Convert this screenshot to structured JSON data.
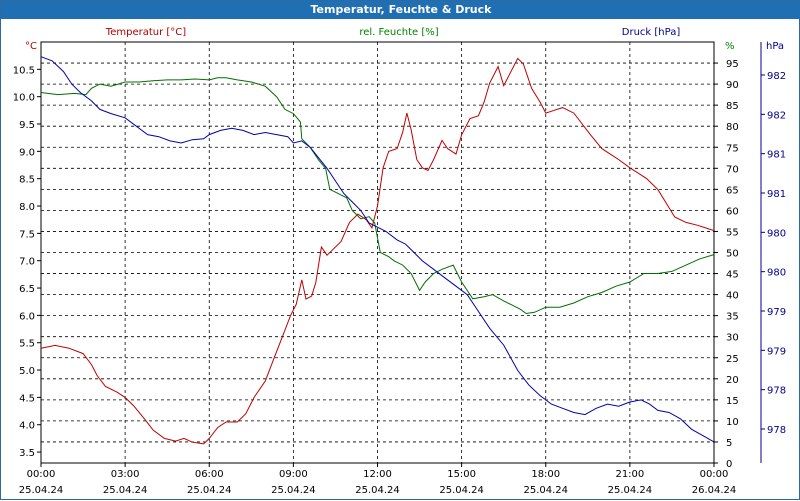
{
  "window": {
    "title": "Temperatur, Feuchte & Druck"
  },
  "chart_data": {
    "type": "line",
    "title": "Temperatur, Feuchte & Druck",
    "x_ticks": [
      {
        "time": "00:00",
        "date": "25.04.24"
      },
      {
        "time": "03:00",
        "date": "25.04.24"
      },
      {
        "time": "06:00",
        "date": "25.04.24"
      },
      {
        "time": "09:00",
        "date": "25.04.24"
      },
      {
        "time": "12:00",
        "date": "25.04.24"
      },
      {
        "time": "15:00",
        "date": "25.04.24"
      },
      {
        "time": "18:00",
        "date": "25.04.24"
      },
      {
        "time": "21:00",
        "date": "25.04.24"
      },
      {
        "time": "00:00",
        "date": "26.04.24"
      }
    ],
    "x_range_hours": [
      0,
      24
    ],
    "grid": true,
    "axes": {
      "temperature": {
        "label": "Temperatur [°C]",
        "unit": "°C",
        "color": "#b00000",
        "range": [
          3.3,
          11.0
        ],
        "ticks": [
          "3.5",
          "4.0",
          "4.5",
          "5.0",
          "5.5",
          "6.0",
          "6.5",
          "7.0",
          "7.5",
          "8.0",
          "8.5",
          "9.0",
          "9.5",
          "10.0",
          "10.5"
        ]
      },
      "humidity": {
        "label": "rel. Feuchte [%]",
        "unit": "%",
        "color": "#008000",
        "range": [
          0,
          100
        ],
        "ticks": [
          "0",
          "5",
          "10",
          "15",
          "20",
          "25",
          "30",
          "35",
          "40",
          "45",
          "50",
          "55",
          "60",
          "65",
          "70",
          "75",
          "80",
          "85",
          "90",
          "95"
        ]
      },
      "pressure": {
        "label": "Druck [hPa]",
        "unit": "hPa",
        "color": "#000090",
        "tick_labels": [
          "982",
          "982",
          "981",
          "981",
          "980",
          "980",
          "979",
          "979",
          "978",
          "978"
        ]
      }
    },
    "series": [
      {
        "name": "Temperatur [°C]",
        "color": "#c00000",
        "points": [
          [
            0.0,
            5.4
          ],
          [
            0.5,
            5.45
          ],
          [
            1.0,
            5.4
          ],
          [
            1.5,
            5.3
          ],
          [
            1.8,
            5.1
          ],
          [
            2.0,
            4.9
          ],
          [
            2.3,
            4.7
          ],
          [
            2.7,
            4.6
          ],
          [
            3.0,
            4.5
          ],
          [
            3.3,
            4.35
          ],
          [
            3.7,
            4.1
          ],
          [
            4.0,
            3.9
          ],
          [
            4.4,
            3.75
          ],
          [
            4.8,
            3.7
          ],
          [
            5.1,
            3.75
          ],
          [
            5.4,
            3.68
          ],
          [
            5.8,
            3.65
          ],
          [
            6.0,
            3.75
          ],
          [
            6.3,
            3.95
          ],
          [
            6.6,
            4.05
          ],
          [
            7.0,
            4.05
          ],
          [
            7.3,
            4.2
          ],
          [
            7.6,
            4.5
          ],
          [
            8.0,
            4.8
          ],
          [
            8.3,
            5.2
          ],
          [
            8.6,
            5.6
          ],
          [
            8.9,
            6.0
          ],
          [
            9.1,
            6.2
          ],
          [
            9.3,
            6.65
          ],
          [
            9.45,
            6.3
          ],
          [
            9.65,
            6.35
          ],
          [
            9.8,
            6.6
          ],
          [
            10.0,
            7.25
          ],
          [
            10.2,
            7.1
          ],
          [
            10.4,
            7.2
          ],
          [
            10.7,
            7.35
          ],
          [
            11.0,
            7.7
          ],
          [
            11.3,
            7.85
          ],
          [
            11.6,
            7.75
          ],
          [
            11.8,
            7.6
          ],
          [
            12.0,
            8.0
          ],
          [
            12.2,
            8.7
          ],
          [
            12.4,
            9.0
          ],
          [
            12.7,
            9.05
          ],
          [
            12.9,
            9.35
          ],
          [
            13.05,
            9.7
          ],
          [
            13.2,
            9.4
          ],
          [
            13.4,
            8.85
          ],
          [
            13.6,
            8.7
          ],
          [
            13.8,
            8.65
          ],
          [
            14.0,
            8.85
          ],
          [
            14.3,
            9.2
          ],
          [
            14.5,
            9.05
          ],
          [
            14.8,
            8.95
          ],
          [
            15.0,
            9.3
          ],
          [
            15.3,
            9.6
          ],
          [
            15.6,
            9.65
          ],
          [
            15.8,
            9.9
          ],
          [
            16.0,
            10.25
          ],
          [
            16.3,
            10.55
          ],
          [
            16.5,
            10.2
          ],
          [
            16.8,
            10.5
          ],
          [
            17.0,
            10.7
          ],
          [
            17.2,
            10.6
          ],
          [
            17.5,
            10.15
          ],
          [
            17.8,
            9.9
          ],
          [
            18.0,
            9.7
          ],
          [
            18.3,
            9.75
          ],
          [
            18.6,
            9.8
          ],
          [
            19.0,
            9.7
          ],
          [
            19.3,
            9.5
          ],
          [
            19.6,
            9.3
          ],
          [
            20.0,
            9.05
          ],
          [
            20.3,
            8.95
          ],
          [
            20.6,
            8.85
          ],
          [
            21.0,
            8.7
          ],
          [
            21.3,
            8.6
          ],
          [
            21.6,
            8.5
          ],
          [
            22.0,
            8.3
          ],
          [
            22.3,
            8.05
          ],
          [
            22.6,
            7.8
          ],
          [
            23.0,
            7.7
          ],
          [
            23.4,
            7.65
          ],
          [
            23.7,
            7.6
          ],
          [
            24.0,
            7.55
          ]
        ]
      },
      {
        "name": "rel. Feuchte [%]",
        "color": "#007000",
        "points": [
          [
            0.0,
            88
          ],
          [
            0.6,
            87.5
          ],
          [
            1.2,
            87.8
          ],
          [
            1.6,
            87.5
          ],
          [
            1.8,
            89
          ],
          [
            2.1,
            90
          ],
          [
            2.5,
            89.5
          ],
          [
            3.0,
            90.5
          ],
          [
            3.5,
            90.5
          ],
          [
            4.0,
            90.8
          ],
          [
            4.5,
            91
          ],
          [
            5.0,
            91
          ],
          [
            5.5,
            91.2
          ],
          [
            6.0,
            91
          ],
          [
            6.3,
            91.5
          ],
          [
            6.6,
            91.5
          ],
          [
            7.0,
            91
          ],
          [
            7.5,
            90.5
          ],
          [
            8.0,
            89.5
          ],
          [
            8.4,
            87
          ],
          [
            8.7,
            84
          ],
          [
            9.0,
            83
          ],
          [
            9.25,
            81
          ],
          [
            9.3,
            77
          ],
          [
            9.6,
            75
          ],
          [
            9.9,
            72
          ],
          [
            10.15,
            70
          ],
          [
            10.3,
            65
          ],
          [
            10.6,
            64
          ],
          [
            10.9,
            63
          ],
          [
            11.1,
            60
          ],
          [
            11.4,
            58
          ],
          [
            11.7,
            58.5
          ],
          [
            11.9,
            57
          ],
          [
            12.1,
            50
          ],
          [
            12.4,
            49
          ],
          [
            12.6,
            48
          ],
          [
            12.9,
            47
          ],
          [
            13.2,
            45
          ],
          [
            13.5,
            41
          ],
          [
            13.7,
            43
          ],
          [
            14.0,
            45
          ],
          [
            14.3,
            46
          ],
          [
            14.7,
            47
          ],
          [
            15.0,
            43
          ],
          [
            15.4,
            39
          ],
          [
            15.8,
            39.5
          ],
          [
            16.1,
            40
          ],
          [
            16.5,
            38.5
          ],
          [
            16.8,
            37.5
          ],
          [
            17.1,
            36.5
          ],
          [
            17.3,
            35.5
          ],
          [
            17.6,
            35.8
          ],
          [
            18.0,
            37
          ],
          [
            18.5,
            37
          ],
          [
            19.0,
            38
          ],
          [
            19.5,
            39.5
          ],
          [
            20.0,
            40.5
          ],
          [
            20.5,
            42
          ],
          [
            21.0,
            43
          ],
          [
            21.5,
            45
          ],
          [
            22.0,
            45
          ],
          [
            22.5,
            45.5
          ],
          [
            23.0,
            47
          ],
          [
            23.5,
            48.5
          ],
          [
            24.0,
            49.5
          ]
        ]
      },
      {
        "name": "Druck [hPa]",
        "color": "#0000b0",
        "y_axis_units": "humidity-scale approximation of pressure trace",
        "points": [
          [
            0.0,
            96.5
          ],
          [
            0.4,
            95.5
          ],
          [
            0.8,
            93
          ],
          [
            1.1,
            90
          ],
          [
            1.4,
            88
          ],
          [
            1.8,
            86
          ],
          [
            2.1,
            84
          ],
          [
            2.5,
            83
          ],
          [
            3.0,
            82
          ],
          [
            3.4,
            80
          ],
          [
            3.8,
            78
          ],
          [
            4.2,
            77.5
          ],
          [
            4.6,
            76.5
          ],
          [
            5.0,
            76
          ],
          [
            5.4,
            76.8
          ],
          [
            5.8,
            77
          ],
          [
            6.0,
            78
          ],
          [
            6.4,
            79
          ],
          [
            6.8,
            79.5
          ],
          [
            7.2,
            79
          ],
          [
            7.6,
            78
          ],
          [
            8.0,
            78.5
          ],
          [
            8.4,
            78
          ],
          [
            8.8,
            77.5
          ],
          [
            9.0,
            76
          ],
          [
            9.3,
            76.5
          ],
          [
            9.6,
            75
          ],
          [
            9.9,
            72.5
          ],
          [
            10.2,
            70
          ],
          [
            10.5,
            67
          ],
          [
            10.8,
            64
          ],
          [
            11.1,
            62
          ],
          [
            11.4,
            60
          ],
          [
            11.7,
            57
          ],
          [
            12.0,
            56
          ],
          [
            12.3,
            55
          ],
          [
            12.7,
            53
          ],
          [
            13.0,
            52
          ],
          [
            13.3,
            50
          ],
          [
            13.6,
            48
          ],
          [
            14.0,
            46
          ],
          [
            14.4,
            44
          ],
          [
            14.8,
            42
          ],
          [
            15.2,
            40
          ],
          [
            15.6,
            36
          ],
          [
            16.0,
            32
          ],
          [
            16.5,
            28
          ],
          [
            17.0,
            22
          ],
          [
            17.4,
            18.5
          ],
          [
            17.8,
            16
          ],
          [
            18.2,
            14
          ],
          [
            18.6,
            13
          ],
          [
            19.0,
            12
          ],
          [
            19.4,
            11.5
          ],
          [
            19.8,
            13
          ],
          [
            20.2,
            14
          ],
          [
            20.6,
            13.5
          ],
          [
            21.0,
            14.5
          ],
          [
            21.4,
            15
          ],
          [
            21.7,
            14
          ],
          [
            22.0,
            12.5
          ],
          [
            22.4,
            12
          ],
          [
            22.8,
            10.5
          ],
          [
            23.2,
            8
          ],
          [
            23.6,
            6.5
          ],
          [
            24.0,
            5
          ]
        ]
      }
    ]
  }
}
